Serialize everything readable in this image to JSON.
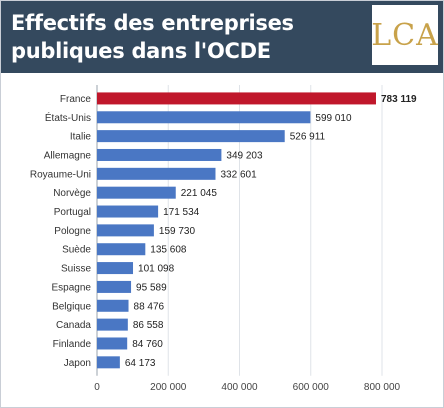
{
  "header": {
    "title": "Effectifs des entreprises publiques dans l'OCDE",
    "logo_text": "LCA"
  },
  "colors": {
    "header_bg": "#34495e",
    "highlight_bar": "#c0172b",
    "bar": "#4a77c4",
    "logo": "#c8a24a"
  },
  "chart_data": {
    "type": "bar",
    "orientation": "horizontal",
    "title": "",
    "xlabel": "",
    "ylabel": "",
    "xlim": [
      0,
      800000
    ],
    "x_ticks": [
      0,
      200000,
      400000,
      600000,
      800000
    ],
    "x_tick_labels": [
      "0",
      "200 000",
      "400 000",
      "600 000",
      "800 000"
    ],
    "grid": "vertical",
    "highlight": "France",
    "categories": [
      "France",
      "États-Unis",
      "Italie",
      "Allemagne",
      "Royaume-Uni",
      "Norvège",
      "Portugal",
      "Pologne",
      "Suède",
      "Suisse",
      "Espagne",
      "Belgique",
      "Canada",
      "Finlande",
      "Japon"
    ],
    "values": [
      783119,
      599010,
      526911,
      349203,
      332601,
      221045,
      171534,
      159730,
      135608,
      101098,
      95589,
      88476,
      86558,
      84760,
      64173
    ],
    "value_labels": [
      "783 119",
      "599 010",
      "526 911",
      "349 203",
      "332 601",
      "221 045",
      "171 534",
      "159 730",
      "135 608",
      "101 098",
      "95 589",
      "88 476",
      "86 558",
      "84 760",
      "64 173"
    ]
  }
}
